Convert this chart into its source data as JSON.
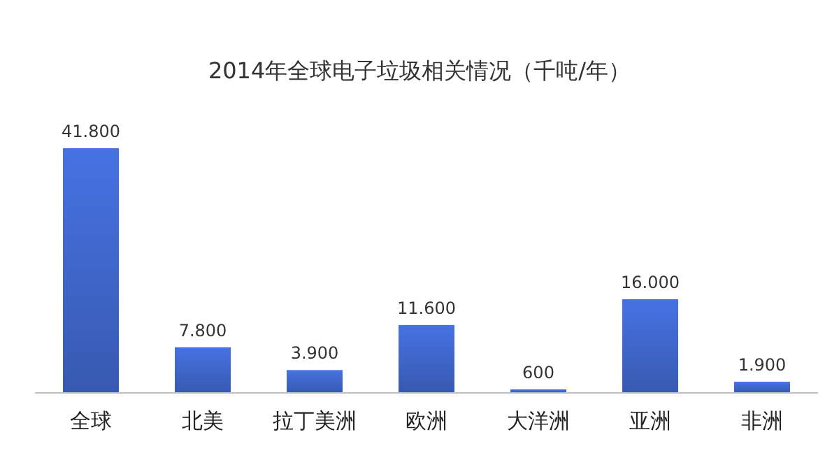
{
  "chart_data": {
    "type": "bar",
    "title": "2014年全球电子垃圾相关情况（千吨/年）",
    "categories": [
      "全球",
      "北美",
      "拉丁美洲",
      "欧洲",
      "大洋洲",
      "亚洲",
      "非洲"
    ],
    "values": [
      41800,
      7800,
      3900,
      11600,
      600,
      16000,
      1900
    ],
    "value_labels": [
      "41.800",
      "7.800",
      "3.900",
      "11.600",
      "600",
      "16.000",
      "1.900"
    ],
    "color": "#3d63c4"
  }
}
